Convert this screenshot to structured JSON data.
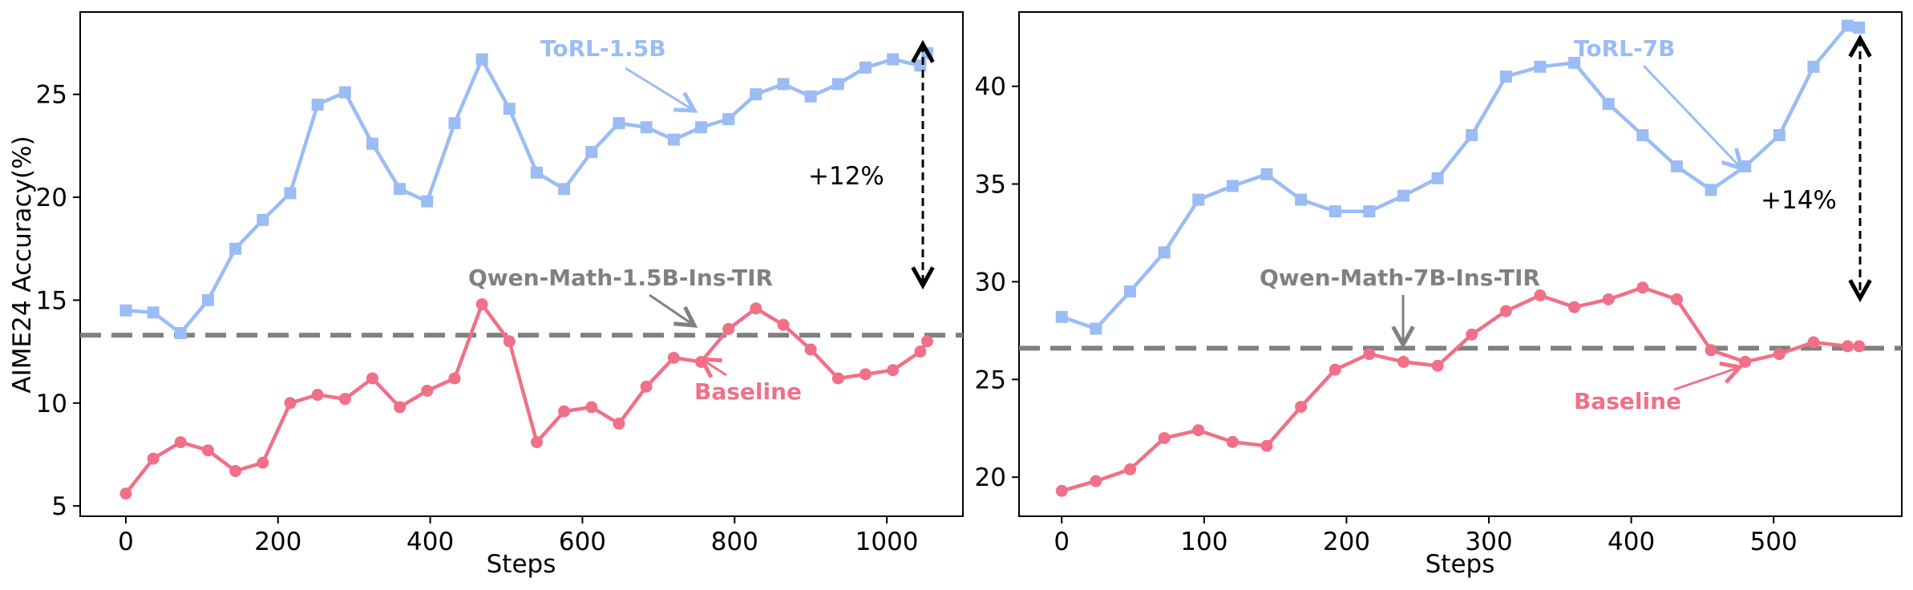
{
  "chart_data": [
    {
      "type": "line",
      "xlabel": "Steps",
      "ylabel": "AIME24 Accuracy(%)",
      "xlim": [
        -60,
        1100
      ],
      "ylim": [
        4.5,
        29
      ],
      "xticks": [
        0,
        200,
        400,
        600,
        800,
        1000
      ],
      "yticks": [
        5,
        10,
        15,
        20,
        25
      ],
      "series": [
        {
          "name": "ToRL-1.5B",
          "color": "#9bbcf4",
          "marker": "square",
          "x": [
            0,
            36,
            72,
            108,
            144,
            180,
            216,
            252,
            288,
            324,
            360,
            396,
            432,
            468,
            504,
            540,
            576,
            612,
            648,
            684,
            720,
            756,
            792,
            828,
            864,
            900,
            936,
            972,
            1008,
            1044,
            1053
          ],
          "y": [
            14.5,
            14.4,
            13.4,
            15.0,
            17.5,
            18.9,
            20.2,
            24.5,
            25.1,
            22.6,
            20.4,
            19.8,
            23.6,
            26.7,
            24.3,
            21.2,
            20.4,
            22.2,
            23.6,
            23.4,
            22.8,
            23.4,
            23.8,
            25.0,
            25.5,
            24.9,
            25.5,
            26.3,
            26.7,
            26.4,
            27.0
          ]
        },
        {
          "name": "Baseline",
          "color": "#f07088",
          "marker": "circle",
          "x": [
            0,
            36,
            72,
            108,
            144,
            180,
            216,
            252,
            288,
            324,
            360,
            396,
            432,
            468,
            504,
            540,
            576,
            612,
            648,
            684,
            720,
            756,
            792,
            828,
            864,
            900,
            936,
            972,
            1008,
            1044,
            1053
          ],
          "y": [
            5.6,
            7.3,
            8.1,
            7.7,
            6.7,
            7.1,
            10.0,
            10.4,
            10.2,
            11.2,
            9.8,
            10.6,
            11.2,
            14.8,
            13.0,
            8.1,
            9.6,
            9.8,
            9.0,
            10.8,
            12.2,
            12.0,
            13.6,
            14.6,
            13.8,
            12.6,
            11.2,
            11.4,
            11.6,
            12.5,
            13.0
          ]
        }
      ],
      "baseline_value": 13.3,
      "annotations": {
        "torl_label": "ToRL-1.5B",
        "qwen_label": "Qwen-Math-1.5B-Ins-TIR",
        "baseline_label": "Baseline",
        "delta_label": "+12%"
      }
    },
    {
      "type": "line",
      "xlabel": "Steps",
      "ylabel": "",
      "xlim": [
        -30,
        590
      ],
      "ylim": [
        18,
        43.8
      ],
      "xticks": [
        0,
        100,
        200,
        300,
        400,
        500
      ],
      "yticks": [
        20,
        25,
        30,
        35,
        40
      ],
      "series": [
        {
          "name": "ToRL-7B",
          "color": "#9bbcf4",
          "marker": "square",
          "x": [
            0,
            24,
            48,
            72,
            96,
            120,
            144,
            168,
            192,
            216,
            240,
            264,
            288,
            312,
            336,
            360,
            384,
            408,
            432,
            456,
            480,
            504,
            528,
            552,
            560
          ],
          "y": [
            28.2,
            27.6,
            29.5,
            31.5,
            34.2,
            34.9,
            35.5,
            34.2,
            33.6,
            33.6,
            34.4,
            35.3,
            37.5,
            40.5,
            41.0,
            41.2,
            39.1,
            37.5,
            35.9,
            34.7,
            35.9,
            37.5,
            41.0,
            43.1,
            43.0
          ]
        },
        {
          "name": "Baseline",
          "color": "#f07088",
          "marker": "circle",
          "x": [
            0,
            24,
            48,
            72,
            96,
            120,
            144,
            168,
            192,
            216,
            240,
            264,
            288,
            312,
            336,
            360,
            384,
            408,
            432,
            456,
            480,
            504,
            528,
            552,
            560
          ],
          "y": [
            19.3,
            19.8,
            20.4,
            22.0,
            22.4,
            21.8,
            21.6,
            23.6,
            25.5,
            26.3,
            25.9,
            25.7,
            27.3,
            28.5,
            29.3,
            28.7,
            29.1,
            29.7,
            29.1,
            26.5,
            25.9,
            26.3,
            26.9,
            26.7,
            26.7
          ]
        }
      ],
      "baseline_value": 26.6,
      "annotations": {
        "torl_label": "ToRL-7B",
        "qwen_label": "Qwen-Math-7B-Ins-TIR",
        "baseline_label": "Baseline",
        "delta_label": "+14%"
      }
    }
  ]
}
